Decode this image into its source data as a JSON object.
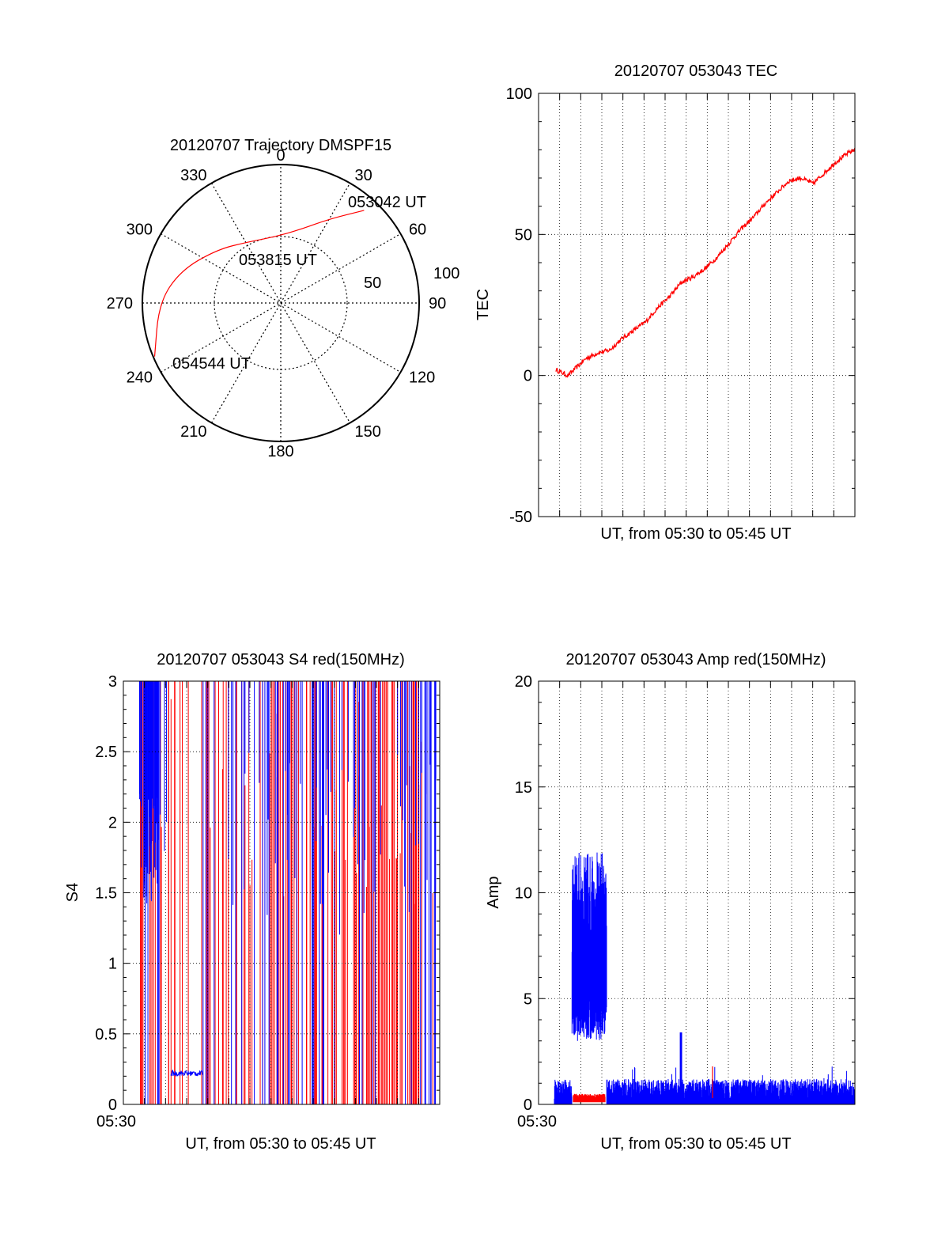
{
  "colors": {
    "red": "#ff0000",
    "blue": "#0000ff",
    "axis": "#000000",
    "grid": "#000000"
  },
  "chart_data": [
    {
      "id": "polar",
      "type": "scatter",
      "title": "20120707 Trajectory DMSPF15",
      "projection": "polar-azimuth-elevation",
      "azimuth_labels": [
        "0",
        "30",
        "60",
        "90",
        "120",
        "150",
        "180",
        "210",
        "240",
        "270",
        "300",
        "330"
      ],
      "elevation_ring_labels": [
        "50",
        "100"
      ],
      "annotations": [
        "053042 UT",
        "053815 UT",
        "054544 UT"
      ],
      "series": [
        {
          "color": "red",
          "points": [
            {
              "az": 42,
              "zen": 90
            },
            {
              "az": 30,
              "zen": 70
            },
            {
              "az": 15,
              "zen": 55
            },
            {
              "az": -5,
              "zen": 48
            },
            {
              "az": -28,
              "zen": 50
            },
            {
              "az": -50,
              "zen": 60
            },
            {
              "az": -72,
              "zen": 76
            },
            {
              "az": -90,
              "zen": 88
            },
            {
              "az": -113,
              "zen": 99
            }
          ]
        }
      ]
    },
    {
      "id": "tec",
      "type": "line",
      "title": "20120707 053043 TEC",
      "xlabel": "UT, from 05:30 to 05:45 UT",
      "ylabel": "TEC",
      "ylim": [
        -50,
        100
      ],
      "yticks": [
        "-50",
        "0",
        "50",
        "100"
      ],
      "grid": true,
      "series": [
        {
          "color": "red",
          "points": [
            [
              0.0,
              2
            ],
            [
              0.04,
              0
            ],
            [
              0.06,
              2
            ],
            [
              0.1,
              6
            ],
            [
              0.14,
              8
            ],
            [
              0.18,
              9
            ],
            [
              0.22,
              13
            ],
            [
              0.26,
              16
            ],
            [
              0.3,
              19
            ],
            [
              0.34,
              24
            ],
            [
              0.38,
              28
            ],
            [
              0.42,
              33
            ],
            [
              0.46,
              35
            ],
            [
              0.5,
              38
            ],
            [
              0.54,
              42
            ],
            [
              0.58,
              47
            ],
            [
              0.62,
              52
            ],
            [
              0.66,
              56
            ],
            [
              0.7,
              61
            ],
            [
              0.74,
              65
            ],
            [
              0.78,
              69
            ],
            [
              0.82,
              70
            ],
            [
              0.86,
              68
            ],
            [
              0.9,
              72
            ],
            [
              0.94,
              76
            ],
            [
              0.98,
              79
            ],
            [
              1.0,
              80
            ]
          ]
        }
      ]
    },
    {
      "id": "s4",
      "type": "line",
      "title": "20120707 053043 S4 red(150MHz)",
      "xlabel": "UT, from 05:30 to 05:45 UT",
      "ylabel": "S4",
      "ylim": [
        0,
        3
      ],
      "yticks": [
        "0",
        "0.5",
        "1",
        "1.5",
        "2",
        "2.5",
        "3"
      ],
      "xtick_label": "05:30",
      "grid": true,
      "series": [
        {
          "color": "red",
          "style": "dense-spikes",
          "range": [
            0.05,
            1.0
          ]
        },
        {
          "color": "blue",
          "style": "dense-spikes",
          "range": [
            0.05,
            1.0
          ],
          "low_segment": {
            "x": [
              0.15,
              0.25
            ],
            "value": 0.22
          }
        }
      ]
    },
    {
      "id": "amp",
      "type": "line",
      "title": "20120707 053043 Amp red(150MHz)",
      "xlabel": "UT, from 05:30 to 05:45 UT",
      "ylabel": "Amp",
      "ylim": [
        0,
        20
      ],
      "yticks": [
        "0",
        "5",
        "10",
        "15",
        "20"
      ],
      "xtick_label": "05:30",
      "grid": true,
      "series": [
        {
          "color": "blue",
          "style": "noise",
          "range": [
            0.0,
            1.0
          ],
          "baseline": 0.6,
          "burst": {
            "x": [
              0.105,
              0.215
            ],
            "low": 3,
            "high": 11
          }
        },
        {
          "color": "red",
          "style": "noise",
          "range": [
            0.11,
            0.21
          ],
          "baseline": 0.3,
          "spike": {
            "x": 0.55,
            "value": 1.8
          }
        }
      ]
    }
  ]
}
